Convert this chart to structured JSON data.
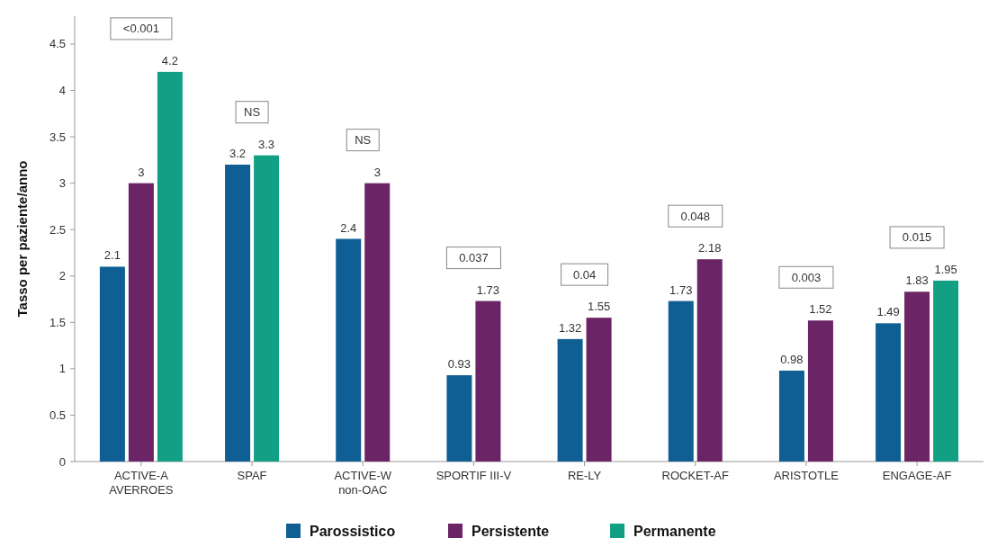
{
  "chart_data": {
    "type": "bar",
    "ylabel": "Tasso per paziente/anno",
    "categories": [
      "ACTIVE-A\nAVERROES",
      "SPAF",
      "ACTIVE-W\nnon-OAC",
      "SPORTIF III-V",
      "RE-LY",
      "ROCKET-AF",
      "ARISTOTLE",
      "ENGAGE-AF"
    ],
    "series": [
      {
        "name": "Parossistico",
        "color": "#0f5f94",
        "values": [
          2.1,
          3.2,
          2.4,
          0.93,
          1.32,
          1.73,
          0.98,
          1.49
        ]
      },
      {
        "name": "Persistente",
        "color": "#6b2466",
        "values": [
          3,
          null,
          3,
          1.73,
          1.55,
          2.18,
          1.52,
          1.83
        ]
      },
      {
        "name": "Permanente",
        "color": "#12a085",
        "values": [
          4.2,
          3.3,
          null,
          null,
          null,
          null,
          null,
          1.95
        ]
      }
    ],
    "ylim": [
      0,
      4.8
    ],
    "yticks": [
      0,
      0.5,
      1,
      1.5,
      2,
      2.5,
      3,
      3.5,
      4,
      4.5
    ],
    "grid": false,
    "legend": "bottom",
    "data_labels": true,
    "annotations": [
      "<0.001",
      "NS",
      "NS",
      "0.037",
      "0.04",
      "0.048",
      "0.003",
      "0.015"
    ]
  }
}
